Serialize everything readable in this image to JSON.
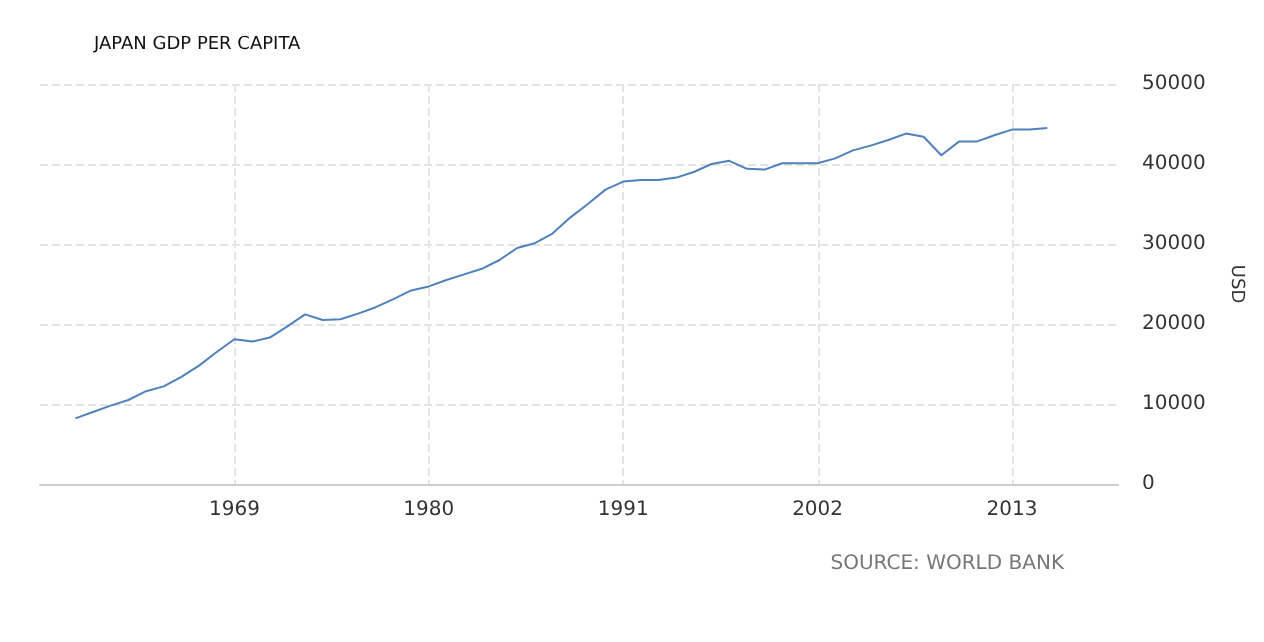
{
  "chart_data": {
    "type": "line",
    "title": "JAPAN GDP PER CAPITA",
    "ylabel": "USD",
    "annotations": [
      "SOURCE: WORLD BANK"
    ],
    "x": [
      1960,
      1961,
      1962,
      1963,
      1964,
      1965,
      1966,
      1967,
      1968,
      1969,
      1970,
      1971,
      1972,
      1973,
      1974,
      1975,
      1976,
      1977,
      1978,
      1979,
      1980,
      1981,
      1982,
      1983,
      1984,
      1985,
      1986,
      1987,
      1988,
      1989,
      1990,
      1991,
      1992,
      1993,
      1994,
      1995,
      1996,
      1997,
      1998,
      1999,
      2000,
      2001,
      2002,
      2003,
      2004,
      2005,
      2006,
      2007,
      2008,
      2009,
      2010,
      2011,
      2012,
      2013,
      2014,
      2015
    ],
    "series": [
      {
        "color": "#4f81bd",
        "values": [
          8200,
          9000,
          9800,
          10500,
          11600,
          12200,
          13400,
          14800,
          16500,
          18100,
          17800,
          18300,
          19700,
          21200,
          20500,
          20600,
          21300,
          22100,
          23100,
          24200,
          24700,
          25500,
          26200,
          26900,
          28000,
          29500,
          30100,
          31300,
          33300,
          35000,
          36800,
          37800,
          38000,
          38000,
          38300,
          39000,
          40000,
          40400,
          39400,
          39300,
          40100,
          40100,
          40100,
          40700,
          41700,
          42300,
          43000,
          43800,
          43400,
          41100,
          42800,
          42800,
          43600,
          44300,
          44300,
          44500
        ]
      }
    ],
    "xlim": [
      1958,
      2019
    ],
    "xticks": [
      1969,
      1980,
      1991,
      2002,
      2013
    ],
    "ylim": [
      0,
      50000
    ],
    "yticks": [
      0,
      10000,
      20000,
      30000,
      40000,
      50000
    ],
    "grid": true,
    "marker": "none",
    "line_style": "solid"
  }
}
